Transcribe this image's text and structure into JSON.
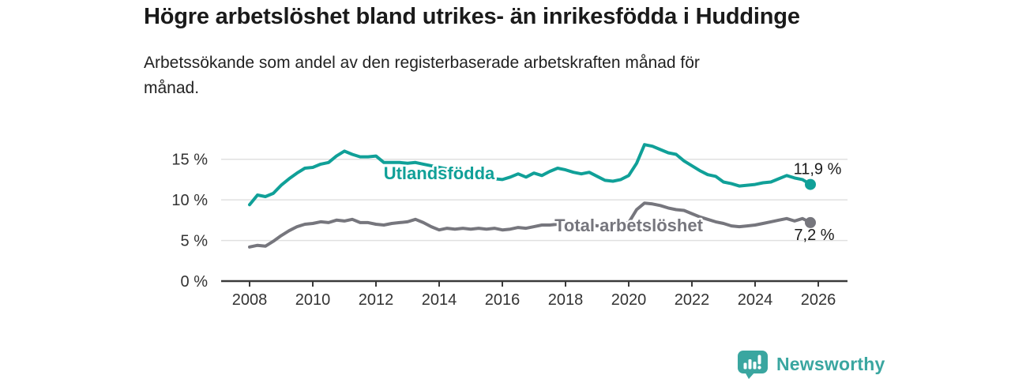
{
  "header": {
    "title": "Högre arbetslöshet bland utrikes- än inrikesfödda i Huddinge",
    "subtitle_line1": "Arbetssökande som andel av den registerbaserade arbetskraften månad för",
    "subtitle_line2": "månad."
  },
  "footer": {
    "brand": "Newsworthy",
    "brand_color": "#3aa6a0",
    "logo_icon": "bar-chart-speech-bubble-icon"
  },
  "chart_data": {
    "type": "line",
    "title": "Högre arbetslöshet bland utrikes- än inrikesfödda i Huddinge",
    "subtitle": "Arbetssökande som andel av den registerbaserade arbetskraften månad för månad.",
    "xlabel": "",
    "ylabel": "",
    "grid": "horizontal",
    "legend_position": "inline-labels",
    "xlim": [
      2006.1,
      2026.9
    ],
    "ylim": [
      0,
      18
    ],
    "x_start": 2008,
    "x_step": 0.25,
    "x_ticks": {
      "values": [
        2008,
        2010,
        2012,
        2014,
        2016,
        2018,
        2020,
        2022,
        2024,
        2026
      ],
      "labels": [
        "2008",
        "2010",
        "2012",
        "2014",
        "2016",
        "2018",
        "2020",
        "2022",
        "2024",
        "2026"
      ]
    },
    "y_ticks": {
      "values": [
        0,
        5,
        10,
        15
      ],
      "labels": [
        "0 %",
        "5 %",
        "10 %",
        "15 %"
      ]
    },
    "series": [
      {
        "name": "Utlandsfödda",
        "color": "#10a098",
        "end_label": "11,9 %",
        "end_value": 11.9,
        "values": [
          9.4,
          10.6,
          10.4,
          10.8,
          11.8,
          12.6,
          13.3,
          13.9,
          14.0,
          14.4,
          14.6,
          15.4,
          16.0,
          15.6,
          15.3,
          15.3,
          15.4,
          14.6,
          14.6,
          14.6,
          14.5,
          14.6,
          14.4,
          14.2,
          14.0,
          13.8,
          13.6,
          13.4,
          13.2,
          13.0,
          12.8,
          12.6,
          12.5,
          12.8,
          13.2,
          12.8,
          13.3,
          13.0,
          13.5,
          13.9,
          13.7,
          13.4,
          13.2,
          13.4,
          12.9,
          12.4,
          12.3,
          12.5,
          13.0,
          14.5,
          16.8,
          16.6,
          16.2,
          15.8,
          15.6,
          14.8,
          14.2,
          13.6,
          13.1,
          12.9,
          12.2,
          12.0,
          11.7,
          11.8,
          11.9,
          12.1,
          12.2,
          12.6,
          13.0,
          12.7,
          12.5,
          11.9
        ]
      },
      {
        "name": "Total arbetslöshet",
        "color": "#76767d",
        "end_label": "7,2 %",
        "end_value": 7.2,
        "values": [
          4.2,
          4.4,
          4.3,
          4.9,
          5.6,
          6.2,
          6.7,
          7.0,
          7.1,
          7.3,
          7.2,
          7.5,
          7.4,
          7.6,
          7.2,
          7.2,
          7.0,
          6.9,
          7.1,
          7.2,
          7.3,
          7.6,
          7.2,
          6.7,
          6.3,
          6.5,
          6.4,
          6.5,
          6.4,
          6.5,
          6.4,
          6.5,
          6.3,
          6.4,
          6.6,
          6.5,
          6.7,
          6.9,
          6.9,
          7.0,
          6.9,
          6.8,
          6.9,
          7.0,
          6.8,
          6.9,
          7.0,
          7.0,
          7.2,
          8.8,
          9.6,
          9.5,
          9.3,
          9.0,
          8.8,
          8.7,
          8.3,
          7.9,
          7.6,
          7.3,
          7.1,
          6.8,
          6.7,
          6.8,
          6.9,
          7.1,
          7.3,
          7.5,
          7.7,
          7.4,
          7.7,
          7.2
        ]
      }
    ]
  }
}
